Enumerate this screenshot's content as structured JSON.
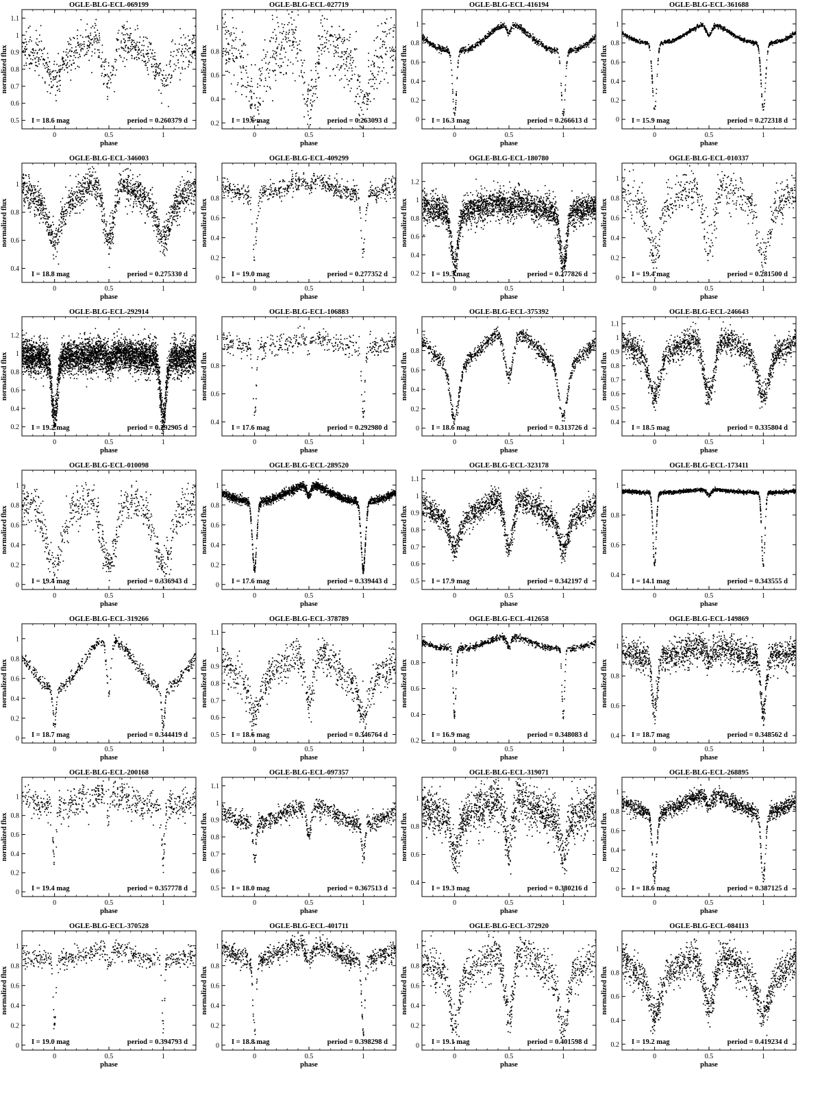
{
  "axis_labels": {
    "x": "phase",
    "y": "normalized flux"
  },
  "chart_data": [
    {
      "type": "scatter",
      "title": "OGLE-BLG-ECL-069199",
      "mag_label": "I = 18.6 mag",
      "period_label": "period = 0.260379 d",
      "xlim": [
        -0.3,
        1.3
      ],
      "ylim": [
        0.45,
        1.15
      ],
      "xticks": [
        0,
        0.5,
        1
      ],
      "yticks": [
        0.5,
        0.6,
        0.7,
        0.8,
        0.9,
        1,
        1.1
      ],
      "model": {
        "shape": "ew",
        "base": 0.86,
        "max": 1.0,
        "d1": 0.72,
        "d2": 0.72,
        "w1": 0.05,
        "w2": 0.05,
        "noise": 0.055,
        "n": 700
      }
    },
    {
      "type": "scatter",
      "title": "OGLE-BLG-ECL-027719",
      "mag_label": "I = 19.6 mag",
      "period_label": "period = 0.263093 d",
      "xlim": [
        -0.3,
        1.3
      ],
      "ylim": [
        0.15,
        1.15
      ],
      "xticks": [
        0,
        0.5,
        1
      ],
      "yticks": [
        0.2,
        0.4,
        0.6,
        0.8,
        1
      ],
      "model": {
        "shape": "ew",
        "base": 0.72,
        "max": 0.98,
        "d1": 0.35,
        "d2": 0.4,
        "w1": 0.06,
        "w2": 0.06,
        "noise": 0.13,
        "n": 700
      }
    },
    {
      "type": "scatter",
      "title": "OGLE-BLG-ECL-416194",
      "mag_label": "I = 16.3 mag",
      "period_label": "period = 0.266613 d",
      "xlim": [
        -0.3,
        1.3
      ],
      "ylim": [
        -0.1,
        1.15
      ],
      "xticks": [
        0,
        0.5,
        1
      ],
      "yticks": [
        0,
        0.2,
        0.4,
        0.6,
        0.8,
        1
      ],
      "model": {
        "shape": "ea",
        "base": 0.72,
        "max": 1.0,
        "d1": 0.05,
        "d2": 0.9,
        "w1": 0.018,
        "w2": 0.02,
        "noise": 0.015,
        "n": 1000
      }
    },
    {
      "type": "scatter",
      "title": "OGLE-BLG-ECL-361688",
      "mag_label": "I = 15.9 mag",
      "period_label": "period = 0.272318 d",
      "xlim": [
        -0.3,
        1.3
      ],
      "ylim": [
        -0.1,
        1.15
      ],
      "xticks": [
        0,
        0.5,
        1
      ],
      "yticks": [
        0,
        0.2,
        0.4,
        0.6,
        0.8,
        1
      ],
      "model": {
        "shape": "ea",
        "base": 0.8,
        "max": 1.0,
        "d1": 0.1,
        "d2": 0.88,
        "w1": 0.02,
        "w2": 0.025,
        "noise": 0.01,
        "n": 1100
      }
    },
    {
      "type": "scatter",
      "title": "OGLE-BLG-ECL-346003",
      "mag_label": "I = 18.8 mag",
      "period_label": "period = 0.275330 d",
      "xlim": [
        -0.3,
        1.3
      ],
      "ylim": [
        0.3,
        1.15
      ],
      "xticks": [
        0,
        0.5,
        1
      ],
      "yticks": [
        0.4,
        0.6,
        0.8,
        1
      ],
      "model": {
        "shape": "ew",
        "base": 0.84,
        "max": 1.04,
        "d1": 0.6,
        "d2": 0.6,
        "w1": 0.05,
        "w2": 0.05,
        "noise": 0.06,
        "n": 1400
      }
    },
    {
      "type": "scatter",
      "title": "OGLE-BLG-ECL-409299",
      "mag_label": "I = 19.0 mag",
      "period_label": "period = 0.277352 d",
      "xlim": [
        -0.3,
        1.3
      ],
      "ylim": [
        -0.05,
        1.15
      ],
      "xticks": [
        0,
        0.5,
        1
      ],
      "yticks": [
        0,
        0.2,
        0.4,
        0.6,
        0.8,
        1
      ],
      "model": {
        "shape": "ea",
        "base": 0.85,
        "max": 0.98,
        "d1": 0.25,
        "d2": 0.9,
        "w1": 0.02,
        "w2": 0.02,
        "noise": 0.05,
        "n": 650
      }
    },
    {
      "type": "scatter",
      "title": "OGLE-BLG-ECL-180780",
      "mag_label": "I = 19.3 mag",
      "period_label": "period = 0.277826 d",
      "xlim": [
        -0.3,
        1.3
      ],
      "ylim": [
        0.1,
        1.4
      ],
      "xticks": [
        0,
        0.5,
        1
      ],
      "yticks": [
        0.2,
        0.4,
        0.6,
        0.8,
        1,
        1.2
      ],
      "model": {
        "shape": "ea",
        "base": 0.88,
        "max": 0.98,
        "d1": 0.28,
        "d2": 0.9,
        "w1": 0.03,
        "w2": 0.03,
        "noise": 0.08,
        "n": 2400
      }
    },
    {
      "type": "scatter",
      "title": "OGLE-BLG-ECL-010337",
      "mag_label": "I = 19.4 mag",
      "period_label": "period = 0.281500 d",
      "xlim": [
        -0.3,
        1.3
      ],
      "ylim": [
        -0.05,
        1.15
      ],
      "xticks": [
        0,
        0.5,
        1
      ],
      "yticks": [
        0,
        0.2,
        0.4,
        0.6,
        0.8,
        1
      ],
      "model": {
        "shape": "ew",
        "base": 0.72,
        "max": 0.95,
        "d1": 0.2,
        "d2": 0.3,
        "w1": 0.05,
        "w2": 0.05,
        "noise": 0.1,
        "n": 650
      }
    },
    {
      "type": "scatter",
      "title": "OGLE-BLG-ECL-292914",
      "mag_label": "I = 19.2 mag",
      "period_label": "period = 0.292905 d",
      "xlim": [
        -0.3,
        1.3
      ],
      "ylim": [
        0.1,
        1.4
      ],
      "xticks": [
        0,
        0.5,
        1
      ],
      "yticks": [
        0.2,
        0.4,
        0.6,
        0.8,
        1,
        1.2
      ],
      "model": {
        "shape": "ea",
        "base": 0.95,
        "max": 1.0,
        "d1": 0.28,
        "d2": 0.9,
        "w1": 0.025,
        "w2": 0.025,
        "noise": 0.09,
        "n": 4500
      }
    },
    {
      "type": "scatter",
      "title": "OGLE-BLG-ECL-106883",
      "mag_label": "I = 17.6 mag",
      "period_label": "period = 0.292980 d",
      "xlim": [
        -0.3,
        1.3
      ],
      "ylim": [
        0.3,
        1.15
      ],
      "xticks": [
        0,
        0.5,
        1
      ],
      "yticks": [
        0.4,
        0.6,
        0.8,
        1
      ],
      "model": {
        "shape": "ea",
        "base": 0.93,
        "max": 1.0,
        "d1": 0.44,
        "d2": 0.92,
        "w1": 0.015,
        "w2": 0.02,
        "noise": 0.035,
        "n": 450
      }
    },
    {
      "type": "scatter",
      "title": "OGLE-BLG-ECL-375392",
      "mag_label": "I = 18.6 mag",
      "period_label": "period = 0.313726 d",
      "xlim": [
        -0.3,
        1.3
      ],
      "ylim": [
        -0.08,
        1.15
      ],
      "xticks": [
        0,
        0.5,
        1
      ],
      "yticks": [
        0,
        0.2,
        0.4,
        0.6,
        0.8,
        1
      ],
      "model": {
        "shape": "ew",
        "base": 0.65,
        "max": 1.02,
        "d1": 0.1,
        "d2": 0.55,
        "w1": 0.04,
        "w2": 0.04,
        "noise": 0.035,
        "n": 1000
      }
    },
    {
      "type": "scatter",
      "title": "OGLE-BLG-ECL-246643",
      "mag_label": "I = 18.5 mag",
      "period_label": "period = 0.335804 d",
      "xlim": [
        -0.3,
        1.3
      ],
      "ylim": [
        0.3,
        1.15
      ],
      "xticks": [
        0,
        0.5,
        1
      ],
      "yticks": [
        0.4,
        0.5,
        0.6,
        0.7,
        0.8,
        0.9,
        1,
        1.1
      ],
      "model": {
        "shape": "ew",
        "base": 0.88,
        "max": 1.02,
        "d1": 0.58,
        "d2": 0.58,
        "w1": 0.05,
        "w2": 0.05,
        "noise": 0.045,
        "n": 1500
      }
    },
    {
      "type": "scatter",
      "title": "OGLE-BLG-ECL-010098",
      "mag_label": "I = 19.4 mag",
      "period_label": "period = 0.336943 d",
      "xlim": [
        -0.3,
        1.3
      ],
      "ylim": [
        -0.05,
        1.15
      ],
      "xticks": [
        0,
        0.5,
        1
      ],
      "yticks": [
        0,
        0.2,
        0.4,
        0.6,
        0.8,
        1
      ],
      "model": {
        "shape": "ew",
        "base": 0.7,
        "max": 0.95,
        "d1": 0.2,
        "d2": 0.2,
        "w1": 0.07,
        "w2": 0.07,
        "noise": 0.1,
        "n": 700
      }
    },
    {
      "type": "scatter",
      "title": "OGLE-BLG-ECL-289520",
      "mag_label": "I = 17.6 mag",
      "period_label": "period = 0.339443 d",
      "xlim": [
        -0.3,
        1.3
      ],
      "ylim": [
        -0.05,
        1.15
      ],
      "xticks": [
        0,
        0.5,
        1
      ],
      "yticks": [
        0,
        0.2,
        0.4,
        0.6,
        0.8,
        1
      ],
      "model": {
        "shape": "ea",
        "base": 0.84,
        "max": 1.0,
        "d1": 0.15,
        "d2": 0.9,
        "w1": 0.02,
        "w2": 0.02,
        "noise": 0.02,
        "n": 2200
      }
    },
    {
      "type": "scatter",
      "title": "OGLE-BLG-ECL-323178",
      "mag_label": "I = 17.9 mag",
      "period_label": "period = 0.342197 d",
      "xlim": [
        -0.3,
        1.3
      ],
      "ylim": [
        0.45,
        1.15
      ],
      "xticks": [
        0,
        0.5,
        1
      ],
      "yticks": [
        0.5,
        0.6,
        0.7,
        0.8,
        0.9,
        1,
        1.1
      ],
      "model": {
        "shape": "ew",
        "base": 0.86,
        "max": 1.0,
        "d1": 0.68,
        "d2": 0.7,
        "w1": 0.04,
        "w2": 0.04,
        "noise": 0.035,
        "n": 1500
      }
    },
    {
      "type": "scatter",
      "title": "OGLE-BLG-ECL-173411",
      "mag_label": "I = 14.1 mag",
      "period_label": "period = 0.343555 d",
      "xlim": [
        -0.3,
        1.3
      ],
      "ylim": [
        0.3,
        1.1
      ],
      "xticks": [
        0,
        0.5,
        1
      ],
      "yticks": [
        0.4,
        0.6,
        0.8,
        1
      ],
      "model": {
        "shape": "ea",
        "base": 0.95,
        "max": 0.97,
        "d1": 0.46,
        "d2": 0.93,
        "w1": 0.015,
        "w2": 0.02,
        "noise": 0.006,
        "n": 1400
      }
    },
    {
      "type": "scatter",
      "title": "OGLE-BLG-ECL-319266",
      "mag_label": "I = 18.7 mag",
      "period_label": "period = 0.344419 d",
      "xlim": [
        -0.3,
        1.3
      ],
      "ylim": [
        -0.05,
        1.15
      ],
      "xticks": [
        0,
        0.5,
        1
      ],
      "yticks": [
        0,
        0.2,
        0.4,
        0.6,
        0.8,
        1
      ],
      "model": {
        "shape": "ew",
        "base": 0.5,
        "max": 1.0,
        "d1": 0.12,
        "d2": 0.45,
        "w1": 0.015,
        "w2": 0.02,
        "noise": 0.03,
        "n": 600
      }
    },
    {
      "type": "scatter",
      "title": "OGLE-BLG-ECL-378789",
      "mag_label": "I = 18.6 mag",
      "period_label": "period = 0.346764 d",
      "xlim": [
        -0.3,
        1.3
      ],
      "ylim": [
        0.45,
        1.15
      ],
      "xticks": [
        0,
        0.5,
        1
      ],
      "yticks": [
        0.5,
        0.6,
        0.7,
        0.8,
        0.9,
        1,
        1.1
      ],
      "model": {
        "shape": "ew",
        "base": 0.8,
        "max": 1.0,
        "d1": 0.6,
        "d2": 0.7,
        "w1": 0.04,
        "w2": 0.04,
        "noise": 0.05,
        "n": 800
      }
    },
    {
      "type": "scatter",
      "title": "OGLE-BLG-ECL-412658",
      "mag_label": "I = 16.9 mag",
      "period_label": "period = 0.348083 d",
      "xlim": [
        -0.3,
        1.3
      ],
      "ylim": [
        0.18,
        1.1
      ],
      "xticks": [
        0,
        0.5,
        1
      ],
      "yticks": [
        0.2,
        0.4,
        0.6,
        0.8,
        1
      ],
      "model": {
        "shape": "ea",
        "base": 0.91,
        "max": 1.0,
        "d1": 0.38,
        "d2": 0.92,
        "w1": 0.012,
        "w2": 0.02,
        "noise": 0.012,
        "n": 800
      }
    },
    {
      "type": "scatter",
      "title": "OGLE-BLG-ECL-149869",
      "mag_label": "I = 18.7 mag",
      "period_label": "period = 0.348562 d",
      "xlim": [
        -0.3,
        1.3
      ],
      "ylim": [
        0.35,
        1.15
      ],
      "xticks": [
        0,
        0.5,
        1
      ],
      "yticks": [
        0.4,
        0.6,
        0.8,
        1
      ],
      "model": {
        "shape": "ea",
        "base": 0.93,
        "max": 1.0,
        "d1": 0.55,
        "d2": 0.9,
        "w1": 0.025,
        "w2": 0.025,
        "noise": 0.05,
        "n": 1500
      }
    },
    {
      "type": "scatter",
      "title": "OGLE-BLG-ECL-200168",
      "mag_label": "I = 19.4 mag",
      "period_label": "period = 0.357778 d",
      "xlim": [
        -0.3,
        1.3
      ],
      "ylim": [
        -0.05,
        1.2
      ],
      "xticks": [
        0,
        0.5,
        1
      ],
      "yticks": [
        0,
        0.2,
        0.4,
        0.6,
        0.8,
        1
      ],
      "model": {
        "shape": "ea",
        "base": 0.9,
        "max": 1.05,
        "d1": 0.35,
        "d2": 0.85,
        "w1": 0.015,
        "w2": 0.02,
        "noise": 0.08,
        "n": 600
      }
    },
    {
      "type": "scatter",
      "title": "OGLE-BLG-ECL-097357",
      "mag_label": "I = 18.0 mag",
      "period_label": "period = 0.367513 d",
      "xlim": [
        -0.3,
        1.3
      ],
      "ylim": [
        0.45,
        1.15
      ],
      "xticks": [
        0,
        0.5,
        1
      ],
      "yticks": [
        0.5,
        0.6,
        0.7,
        0.8,
        0.9,
        1,
        1.1
      ],
      "model": {
        "shape": "ew",
        "base": 0.88,
        "max": 0.98,
        "d1": 0.68,
        "d2": 0.8,
        "w1": 0.015,
        "w2": 0.02,
        "noise": 0.025,
        "n": 900
      }
    },
    {
      "type": "scatter",
      "title": "OGLE-BLG-ECL-319071",
      "mag_label": "I = 19.3 mag",
      "period_label": "period = 0.380216 d",
      "xlim": [
        -0.3,
        1.3
      ],
      "ylim": [
        0.3,
        1.15
      ],
      "xticks": [
        0,
        0.5,
        1
      ],
      "yticks": [
        0.4,
        0.6,
        0.8,
        1
      ],
      "model": {
        "shape": "ew",
        "base": 0.85,
        "max": 1.0,
        "d1": 0.58,
        "d2": 0.6,
        "w1": 0.03,
        "w2": 0.03,
        "noise": 0.08,
        "n": 1600
      }
    },
    {
      "type": "scatter",
      "title": "OGLE-BLG-ECL-268895",
      "mag_label": "I = 18.6 mag",
      "period_label": "period = 0.387125 d",
      "xlim": [
        -0.3,
        1.3
      ],
      "ylim": [
        -0.08,
        1.15
      ],
      "xticks": [
        0,
        0.5,
        1
      ],
      "yticks": [
        0,
        0.2,
        0.4,
        0.6,
        0.8,
        1
      ],
      "model": {
        "shape": "ew",
        "base": 0.78,
        "max": 0.97,
        "d1": 0.1,
        "d2": 0.85,
        "w1": 0.02,
        "w2": 0.03,
        "noise": 0.04,
        "n": 1400
      }
    },
    {
      "type": "scatter",
      "title": "OGLE-BLG-ECL-370528",
      "mag_label": "I = 19.0 mag",
      "period_label": "period = 0.394793 d",
      "xlim": [
        -0.3,
        1.3
      ],
      "ylim": [
        -0.05,
        1.15
      ],
      "xticks": [
        0,
        0.5,
        1
      ],
      "yticks": [
        0,
        0.2,
        0.4,
        0.6,
        0.8,
        1
      ],
      "model": {
        "shape": "ea",
        "base": 0.86,
        "max": 0.97,
        "d1": 0.2,
        "d2": 0.82,
        "w1": 0.012,
        "w2": 0.02,
        "noise": 0.05,
        "n": 500
      }
    },
    {
      "type": "scatter",
      "title": "OGLE-BLG-ECL-401711",
      "mag_label": "I = 18.8 mag",
      "period_label": "period = 0.398298 d",
      "xlim": [
        -0.3,
        1.3
      ],
      "ylim": [
        -0.05,
        1.15
      ],
      "xticks": [
        0,
        0.5,
        1
      ],
      "yticks": [
        0,
        0.2,
        0.4,
        0.6,
        0.8,
        1
      ],
      "model": {
        "shape": "ew",
        "base": 0.86,
        "max": 1.02,
        "d1": 0.15,
        "d2": 0.85,
        "w1": 0.015,
        "w2": 0.03,
        "noise": 0.05,
        "n": 900
      }
    },
    {
      "type": "scatter",
      "title": "OGLE-BLG-ECL-372920",
      "mag_label": "I = 19.1 mag",
      "period_label": "period = 0.401598 d",
      "xlim": [
        -0.3,
        1.3
      ],
      "ylim": [
        -0.05,
        1.15
      ],
      "xticks": [
        0,
        0.5,
        1
      ],
      "yticks": [
        0,
        0.2,
        0.4,
        0.6,
        0.8,
        1
      ],
      "model": {
        "shape": "ew",
        "base": 0.7,
        "max": 0.98,
        "d1": 0.2,
        "d2": 0.3,
        "w1": 0.04,
        "w2": 0.04,
        "noise": 0.1,
        "n": 900
      }
    },
    {
      "type": "scatter",
      "title": "OGLE-BLG-ECL-084113",
      "mag_label": "I = 19.2 mag",
      "period_label": "period = 0.419234 d",
      "xlim": [
        -0.3,
        1.3
      ],
      "ylim": [
        0.15,
        1.15
      ],
      "xticks": [
        0,
        0.5,
        1
      ],
      "yticks": [
        0.2,
        0.4,
        0.6,
        0.8,
        1
      ],
      "model": {
        "shape": "ew",
        "base": 0.75,
        "max": 0.98,
        "d1": 0.45,
        "d2": 0.5,
        "w1": 0.05,
        "w2": 0.05,
        "noise": 0.07,
        "n": 1300
      }
    }
  ]
}
